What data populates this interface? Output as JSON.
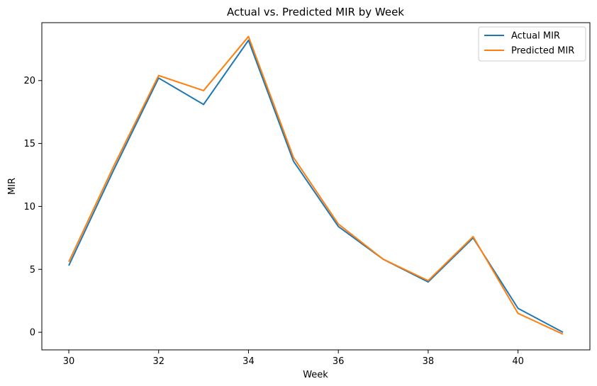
{
  "chart_data": {
    "type": "line",
    "title": "Actual vs. Predicted MIR by Week",
    "xlabel": "Week",
    "ylabel": "MIR",
    "xlim": [
      29.4,
      41.6
    ],
    "ylim": [
      -1.4,
      24.6
    ],
    "x_ticks": [
      30,
      32,
      34,
      36,
      38,
      40
    ],
    "y_ticks": [
      0,
      5,
      10,
      15,
      20
    ],
    "grid": false,
    "legend_position": "top-right",
    "x": [
      30,
      31,
      32,
      33,
      34,
      35,
      36,
      37,
      38,
      39,
      40,
      41
    ],
    "series": [
      {
        "name": "Actual MIR",
        "color": "#1f77b4",
        "values": [
          5.3,
          12.9,
          20.2,
          18.1,
          23.2,
          13.6,
          8.4,
          5.8,
          4.0,
          7.5,
          1.9,
          0.0
        ]
      },
      {
        "name": "Predicted MIR",
        "color": "#ff7f0e",
        "values": [
          5.6,
          13.2,
          20.4,
          19.2,
          23.5,
          13.9,
          8.6,
          5.8,
          4.1,
          7.6,
          1.5,
          -0.15
        ]
      }
    ]
  }
}
